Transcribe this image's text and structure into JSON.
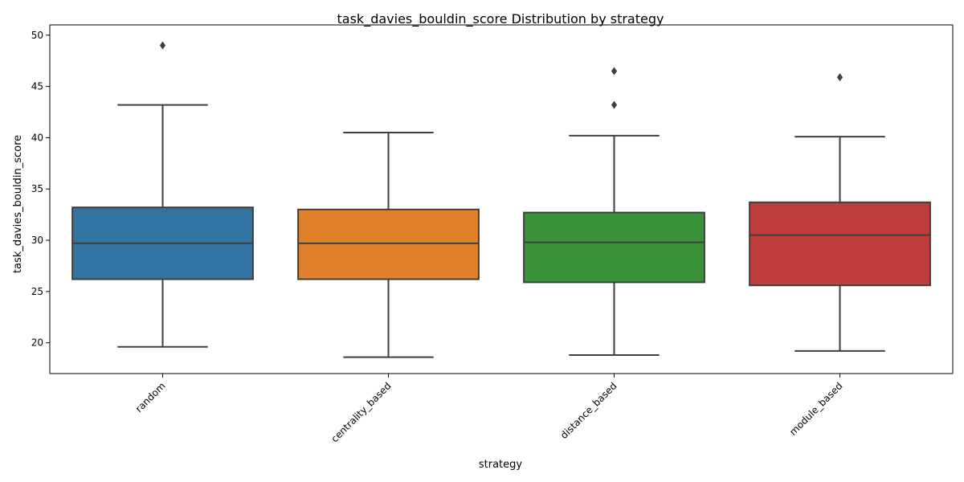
{
  "chart_data": {
    "type": "box",
    "title": "task_davies_bouldin_score Distribution by strategy",
    "xlabel": "strategy",
    "ylabel": "task_davies_bouldin_score",
    "ylim": [
      17,
      51
    ],
    "yticks": [
      20,
      25,
      30,
      35,
      40,
      45,
      50
    ],
    "grid": false,
    "categories": [
      "random",
      "centrality_based",
      "distance_based",
      "module_based"
    ],
    "colors": [
      "#3274a1",
      "#e1812c",
      "#3a923a",
      "#c03d3e"
    ],
    "boxes": [
      {
        "name": "random",
        "whisker_low": 19.6,
        "q1": 26.2,
        "median": 29.7,
        "q3": 33.2,
        "whisker_high": 43.2,
        "outliers": [
          49.0
        ]
      },
      {
        "name": "centrality_based",
        "whisker_low": 18.6,
        "q1": 26.2,
        "median": 29.7,
        "q3": 33.0,
        "whisker_high": 40.5,
        "outliers": []
      },
      {
        "name": "distance_based",
        "whisker_low": 18.8,
        "q1": 25.9,
        "median": 29.8,
        "q3": 32.7,
        "whisker_high": 40.2,
        "outliers": [
          43.2,
          46.5
        ]
      },
      {
        "name": "module_based",
        "whisker_low": 19.2,
        "q1": 25.6,
        "median": 30.5,
        "q3": 33.7,
        "whisker_high": 40.1,
        "outliers": [
          45.9
        ]
      }
    ]
  }
}
